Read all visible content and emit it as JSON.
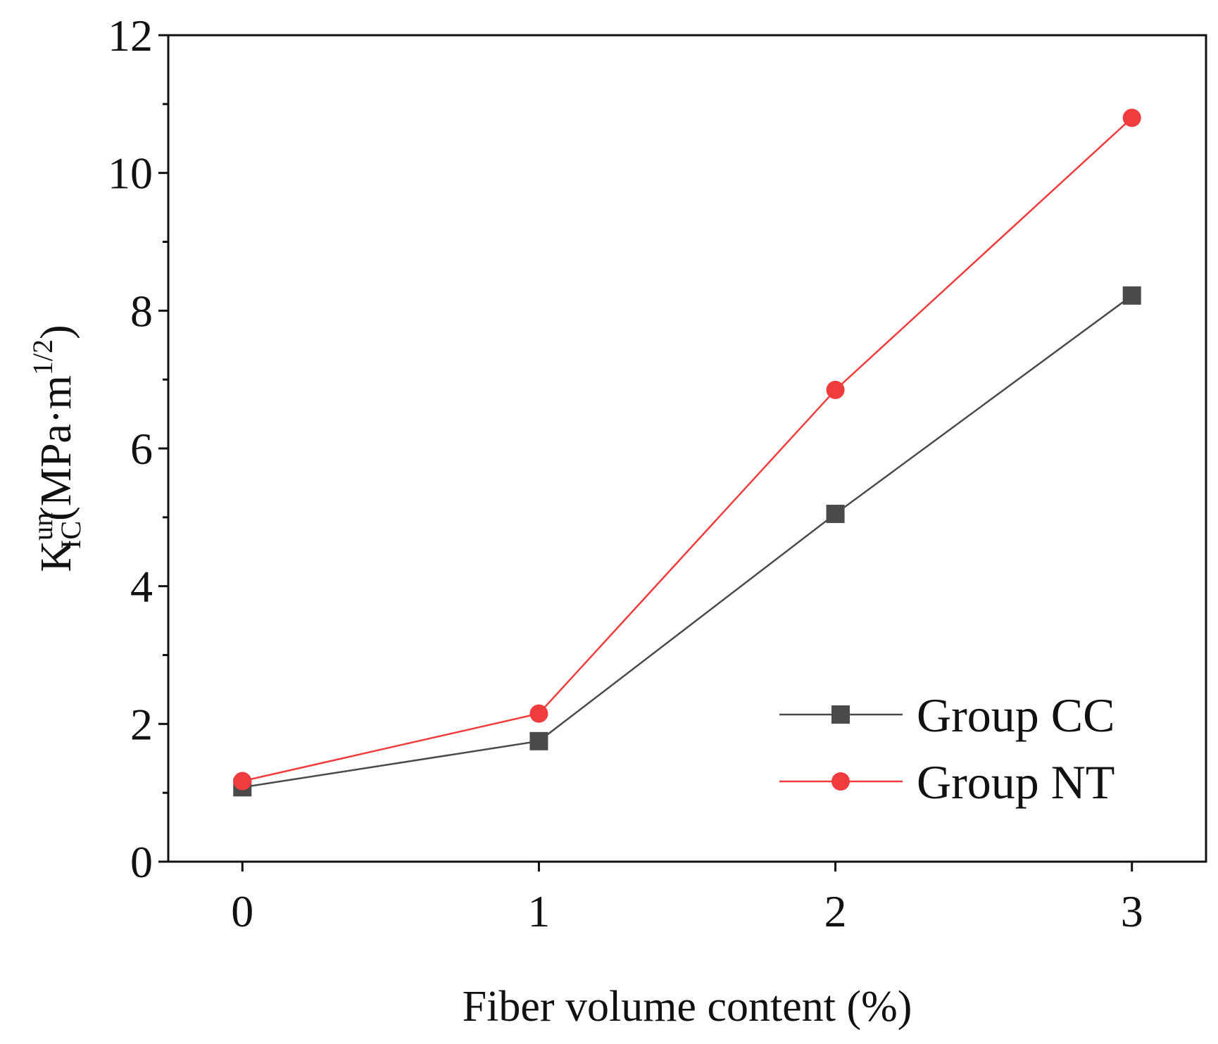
{
  "chart_data": {
    "type": "line",
    "title": "",
    "xlabel": "Fiber volume content (%)",
    "ylabel": {
      "main": "K",
      "superscript": "un",
      "subscript": "IC",
      "unit_open": "(MPa·m",
      "unit_sup": "1/2",
      "unit_close": ")"
    },
    "x": [
      0,
      1,
      2,
      3
    ],
    "xticks": [
      "0",
      "1",
      "2",
      "3"
    ],
    "yticks": [
      "0",
      "2",
      "4",
      "6",
      "8",
      "10",
      "12"
    ],
    "xlim": [
      -0.25,
      3.25
    ],
    "ylim": [
      0,
      12
    ],
    "grid": false,
    "legend_position": "bottom-right",
    "series": [
      {
        "name": "Group CC",
        "values": [
          1.08,
          1.75,
          5.05,
          8.22
        ],
        "color": "#4a4a4a",
        "marker": "square"
      },
      {
        "name": "Group NT",
        "values": [
          1.17,
          2.15,
          6.85,
          10.8
        ],
        "color": "#f03c3c",
        "marker": "circle"
      }
    ]
  }
}
